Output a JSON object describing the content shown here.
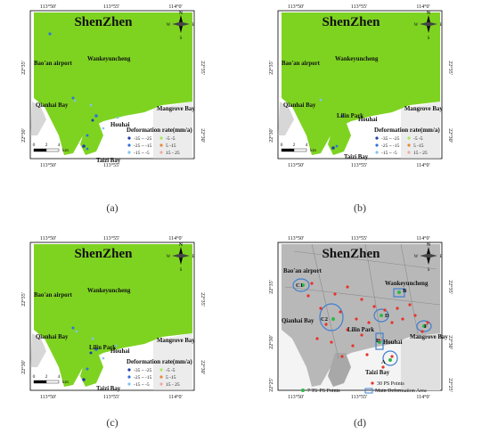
{
  "panels": [
    {
      "id": "a",
      "caption": "(a)",
      "title": "ShenZhen",
      "top_ticks": [
        "113°50'",
        "113°55'",
        "114°0'"
      ],
      "bottom_ticks": [
        "113°50'",
        "113°55'"
      ],
      "left_ticks": [
        "22°35'",
        "22°30'"
      ],
      "right_ticks": [
        "22°35'",
        "22°30'"
      ],
      "places": [
        "Bao'an airport",
        "Wankeyuncheng",
        "Qianhai Bay",
        "Mangrove Bay",
        "Houhai",
        "Taizi Bay"
      ],
      "scale_labels": [
        "0",
        "2",
        "4",
        "km"
      ],
      "legend_title": "Deformation rate(mm/a)",
      "legend_items": [
        "-35 ~ -25",
        "-25 ~ -15",
        "-15 ~ -5",
        "-5 -5",
        "5 -15",
        "15 - 25"
      ],
      "north": "N",
      "compass": [
        "W",
        "E",
        "S"
      ]
    },
    {
      "id": "b",
      "caption": "(b)",
      "title": "ShenZhen",
      "top_ticks": [
        "113°50'",
        "113°55'",
        "114°0'"
      ],
      "bottom_ticks": [
        "113°50'",
        "113°55'",
        "114°0'"
      ],
      "left_ticks": [
        "22°35'",
        "22°30'"
      ],
      "right_ticks": [
        "22°35'",
        "22°30'"
      ],
      "places": [
        "Bao'an airport",
        "Wankeyuncheng",
        "Qianhai Bay",
        "Lilin Park",
        "Mangrove Bay",
        "Houhai",
        "Taizi Bay"
      ],
      "scale_labels": [
        "0",
        "2",
        "4",
        "km"
      ],
      "legend_title": "Deformation rate(mm/a)",
      "legend_items": [
        "-35 ~ -25",
        "-25 ~ -15",
        "-15 ~ -5",
        "-5 -5",
        "5 -15",
        "15 - 25"
      ],
      "north": "N",
      "compass": [
        "W",
        "E",
        "S"
      ]
    },
    {
      "id": "c",
      "caption": "(c)",
      "title": "ShenZhen",
      "top_ticks": [
        "113°50'",
        "113°55'",
        "114°0'"
      ],
      "bottom_ticks": [
        "113°50'",
        "113°55'",
        "114°0'"
      ],
      "left_ticks": [
        "22°35'",
        "22°30'"
      ],
      "right_ticks": [
        "22°35'",
        "22°30'"
      ],
      "places": [
        "Bao'an airport",
        "Wankeyuncheng",
        "Qianhai Bay",
        "Lilin Park",
        "Mangrove Bay",
        "Houhai",
        "Taizi Bay"
      ],
      "scale_labels": [
        "0",
        "2",
        "4",
        "km"
      ],
      "legend_title": "Deformation rate(mm/a)",
      "legend_items": [
        "-35 ~ -25",
        "-25 ~ -15",
        "-15 ~ -5",
        "-5 -5",
        "5 -15",
        "15 - 25"
      ],
      "north": "N",
      "compass": [
        "W",
        "E",
        "S"
      ]
    },
    {
      "id": "d",
      "caption": "(d)",
      "title": "ShenZhen",
      "top_ticks": [
        "113°50'",
        "113°55'",
        "114°0'"
      ],
      "bottom_ticks": [
        "113°50'",
        "113°55'",
        "114°0'"
      ],
      "left_ticks": [
        "22°35'",
        "22°30'",
        "22°25'"
      ],
      "right_ticks": [
        "22°35'",
        "22°30'",
        "22°25'"
      ],
      "places": [
        "Bao'an airport",
        "Wankeyuncheng",
        "Qianhai Bay",
        "Lilin Park",
        "Mangrove Bay",
        "Houhai",
        "Taizi Bay"
      ],
      "area_labels": [
        "C1",
        "C2",
        "B",
        "D",
        "E",
        "A",
        "F"
      ],
      "legend_items": [
        "30 PS Points",
        "7 TS-PS Points",
        "Main Deformation Area"
      ],
      "north": "N",
      "compass": [
        "W",
        "E",
        "S"
      ]
    }
  ],
  "colors": {
    "land": "#7ed321",
    "urban_gray": "#9a9a9a",
    "sub_dark": "#1f3fa8",
    "sub_mid": "#2f73d6",
    "sub_light": "#7fc4f2",
    "stable": "#a6e85a",
    "uplift_low": "#e88a3a",
    "uplift_high": "#f2a7a0",
    "ps_point": "#e8322a",
    "ts_point": "#2db84a",
    "area_outline": "#3f7fd0"
  }
}
